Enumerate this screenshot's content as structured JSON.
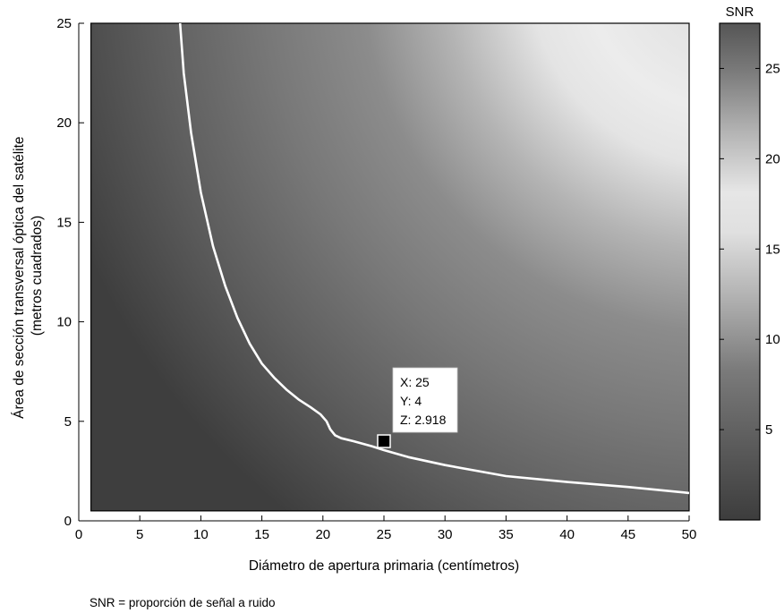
{
  "chart_data": {
    "type": "heatmap",
    "xlabel": "Diámetro de apertura primaria (centímetros)",
    "ylabel": [
      "Área de sección transversal óptica del satélite",
      "(metros cuadrados)"
    ],
    "xlim": [
      0,
      50
    ],
    "ylim": [
      0,
      25
    ],
    "x_ticks": [
      "0",
      "5",
      "10",
      "15",
      "20",
      "25",
      "30",
      "35",
      "40",
      "45",
      "50"
    ],
    "y_ticks": [
      "0",
      "5",
      "10",
      "15",
      "20",
      "25"
    ],
    "data_extent": {
      "x": [
        1,
        50
      ],
      "y": [
        0.5,
        25
      ]
    },
    "colormap": "gray",
    "colorbar": {
      "title": "SNR",
      "range": [
        0,
        27.5
      ],
      "ticks": [
        "5",
        "10",
        "15",
        "20",
        "25"
      ],
      "colors": {
        "min": "#3d3d3d",
        "mid": "#e8e8e8",
        "max": "#555555"
      }
    },
    "contour": {
      "color": "#ffffff",
      "x": [
        8.3,
        8.6,
        9.2,
        10,
        11,
        12,
        13,
        14,
        15,
        16,
        17,
        18,
        19,
        19.8,
        20.3,
        20.6,
        21,
        21.5,
        22.5,
        24,
        25,
        27,
        30,
        35,
        40,
        45,
        50
      ],
      "y": [
        25,
        22.5,
        19.5,
        16.5,
        13.8,
        11.8,
        10.2,
        8.9,
        7.9,
        7.2,
        6.6,
        6.1,
        5.7,
        5.35,
        5.0,
        4.6,
        4.3,
        4.15,
        4.0,
        3.75,
        3.55,
        3.2,
        2.8,
        2.25,
        1.95,
        1.7,
        1.4
      ]
    },
    "datatip": {
      "x": 25,
      "y": 4,
      "lines": [
        "X: 25",
        "Y: 4",
        "Z: 2.918"
      ]
    }
  },
  "footnote": "SNR = proporción de señal a ruido"
}
